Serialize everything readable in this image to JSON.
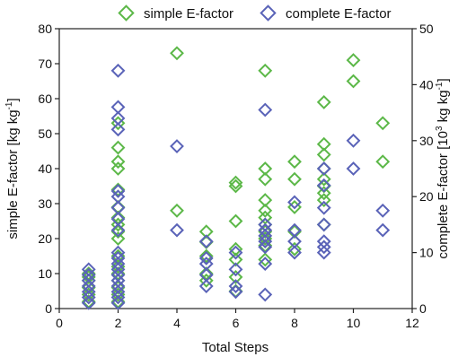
{
  "chart_data": {
    "type": "scatter",
    "xlabel": "Total Steps",
    "ylabel_left": "simple E-factor [kg kg",
    "ylabel_left_sup": "-1",
    "ylabel_left_end": "]",
    "ylabel_right": "complete E-factor [10",
    "ylabel_right_sup1": "3",
    "ylabel_right_mid": " kg kg",
    "ylabel_right_sup2": "-1",
    "ylabel_right_end": "]",
    "xlim": [
      0,
      12
    ],
    "ylim_left": [
      0,
      80
    ],
    "ylim_right": [
      0,
      50
    ],
    "x_ticks": [
      0,
      2,
      4,
      6,
      8,
      10,
      12
    ],
    "y_left_ticks": [
      0,
      10,
      20,
      30,
      40,
      50,
      60,
      70,
      80
    ],
    "y_right_ticks": [
      0,
      10,
      20,
      30,
      40,
      50
    ],
    "legend_position": "top",
    "series": [
      {
        "name": "simple E-factor",
        "axis": "left",
        "color": "#5cb848",
        "marker": "diamond-open",
        "points": [
          [
            1,
            2
          ],
          [
            1,
            4
          ],
          [
            1,
            6
          ],
          [
            1,
            8
          ],
          [
            1,
            9
          ],
          [
            1,
            10
          ],
          [
            2,
            2
          ],
          [
            2,
            4
          ],
          [
            2,
            6
          ],
          [
            2,
            8
          ],
          [
            2,
            10
          ],
          [
            2,
            12
          ],
          [
            2,
            15
          ],
          [
            2,
            20
          ],
          [
            2,
            22
          ],
          [
            2,
            24
          ],
          [
            2,
            26
          ],
          [
            2,
            29
          ],
          [
            2,
            34
          ],
          [
            2,
            40
          ],
          [
            2,
            42
          ],
          [
            2,
            46
          ],
          [
            2,
            53
          ],
          [
            4,
            28
          ],
          [
            4,
            73
          ],
          [
            5,
            8
          ],
          [
            5,
            10
          ],
          [
            5,
            15
          ],
          [
            5,
            19
          ],
          [
            5,
            22
          ],
          [
            6,
            5
          ],
          [
            6,
            9
          ],
          [
            6,
            14
          ],
          [
            6,
            17
          ],
          [
            6,
            25
          ],
          [
            6,
            35
          ],
          [
            6,
            36
          ],
          [
            7,
            14
          ],
          [
            7,
            18
          ],
          [
            7,
            20
          ],
          [
            7,
            22
          ],
          [
            7,
            24
          ],
          [
            7,
            26
          ],
          [
            7,
            28
          ],
          [
            7,
            31
          ],
          [
            7,
            37
          ],
          [
            7,
            40
          ],
          [
            7,
            68
          ],
          [
            8,
            17
          ],
          [
            8,
            22
          ],
          [
            8,
            29
          ],
          [
            8,
            37
          ],
          [
            8,
            42
          ],
          [
            9,
            24
          ],
          [
            9,
            31
          ],
          [
            9,
            33
          ],
          [
            9,
            35
          ],
          [
            9,
            37
          ],
          [
            9,
            40
          ],
          [
            9,
            44
          ],
          [
            9,
            47
          ],
          [
            9,
            59
          ],
          [
            10,
            65
          ],
          [
            10,
            71
          ],
          [
            11,
            42
          ],
          [
            11,
            53
          ]
        ]
      },
      {
        "name": "complete E-factor",
        "axis": "right",
        "color": "#5a63b8",
        "marker": "diamond-open",
        "points": [
          [
            1,
            1
          ],
          [
            1,
            2
          ],
          [
            1,
            3
          ],
          [
            1,
            4
          ],
          [
            1,
            5
          ],
          [
            1,
            6
          ],
          [
            1,
            7
          ],
          [
            2,
            1
          ],
          [
            2,
            2
          ],
          [
            2,
            3
          ],
          [
            2,
            4
          ],
          [
            2,
            5
          ],
          [
            2,
            6
          ],
          [
            2,
            7
          ],
          [
            2,
            8
          ],
          [
            2,
            9
          ],
          [
            2,
            10
          ],
          [
            2,
            14
          ],
          [
            2,
            16
          ],
          [
            2,
            18
          ],
          [
            2,
            20
          ],
          [
            2,
            21
          ],
          [
            2,
            32
          ],
          [
            2,
            34
          ],
          [
            2,
            36
          ],
          [
            2,
            42.5
          ],
          [
            4,
            14
          ],
          [
            4,
            29
          ],
          [
            5,
            4
          ],
          [
            5,
            6
          ],
          [
            5,
            8
          ],
          [
            5,
            9
          ],
          [
            5,
            12
          ],
          [
            6,
            3
          ],
          [
            6,
            4
          ],
          [
            6,
            7
          ],
          [
            6,
            10
          ],
          [
            7,
            2.5
          ],
          [
            7,
            8
          ],
          [
            7,
            11
          ],
          [
            7,
            12
          ],
          [
            7,
            13
          ],
          [
            7,
            14
          ],
          [
            7,
            15
          ],
          [
            7,
            35.5
          ],
          [
            8,
            10
          ],
          [
            8,
            12
          ],
          [
            8,
            14
          ],
          [
            8,
            19
          ],
          [
            9,
            10
          ],
          [
            9,
            11
          ],
          [
            9,
            12
          ],
          [
            9,
            15
          ],
          [
            9,
            18
          ],
          [
            9,
            22
          ],
          [
            9,
            25
          ],
          [
            10,
            25
          ],
          [
            10,
            30
          ],
          [
            11,
            14
          ],
          [
            11,
            17.5
          ]
        ]
      }
    ]
  }
}
